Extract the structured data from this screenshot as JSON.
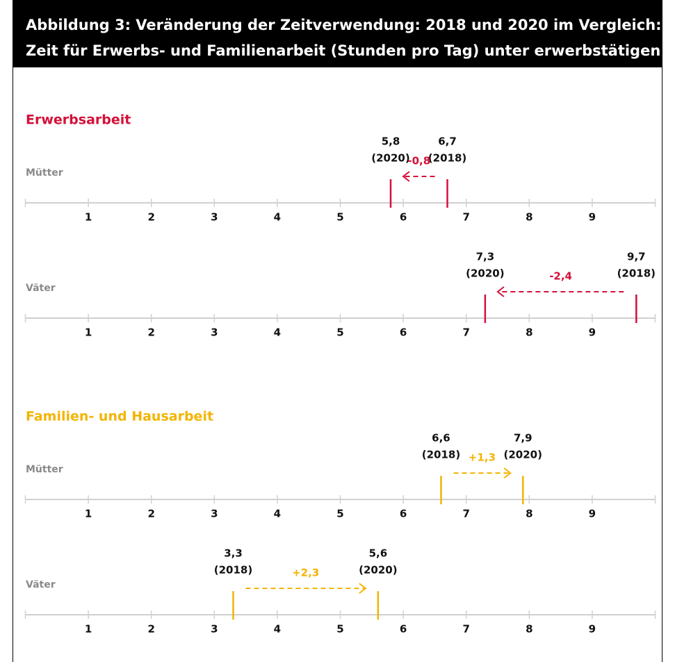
{
  "title": [
    "Abbildung 3: Veränderung der Zeitverwendung: 2018 und 2020 im Vergleich:",
    "Zeit für Erwerbs- und Familienarbeit (Stunden pro Tag) unter erwerbstätigen Eltern"
  ],
  "chart_data": [
    {
      "type": "arrow-range",
      "section": "Erwerbsarbeit",
      "title": "Mütter",
      "color": "#d4103a",
      "values": [
        6.7,
        5.8
      ],
      "value_labels": [
        "6,7",
        "5,8"
      ],
      "years": [
        "(2018)",
        "(2020)"
      ],
      "change": -0.8,
      "change_label": "-0,8",
      "xlim": [
        0,
        10
      ],
      "xticks": [
        1,
        2,
        3,
        4,
        5,
        6,
        7,
        8,
        9
      ]
    },
    {
      "type": "arrow-range",
      "title": "Väter",
      "color": "#d4103a",
      "values": [
        9.7,
        7.3
      ],
      "value_labels": [
        "9,7",
        "7,3"
      ],
      "years": [
        "(2018)",
        "(2020)"
      ],
      "change": -2.4,
      "change_label": "-2,4",
      "xlim": [
        0,
        10
      ],
      "xticks": [
        1,
        2,
        3,
        4,
        5,
        6,
        7,
        8,
        9
      ]
    },
    {
      "type": "arrow-range",
      "section": "Familien- und Hausarbeit",
      "title": "Mütter",
      "color": "#f4b400",
      "values": [
        6.6,
        7.9
      ],
      "value_labels": [
        "6,6",
        "7,9"
      ],
      "years": [
        "(2018)",
        "(2020)"
      ],
      "change": 1.3,
      "change_label": "+1,3",
      "xlim": [
        0,
        10
      ],
      "xticks": [
        1,
        2,
        3,
        4,
        5,
        6,
        7,
        8,
        9
      ]
    },
    {
      "type": "arrow-range",
      "title": "Väter",
      "color": "#f4b400",
      "values": [
        3.3,
        5.6
      ],
      "value_labels": [
        "3,3",
        "5,6"
      ],
      "years": [
        "(2018)",
        "(2020)"
      ],
      "change": 2.3,
      "change_label": "+2,3",
      "xlim": [
        0,
        10
      ],
      "xticks": [
        1,
        2,
        3,
        4,
        5,
        6,
        7,
        8,
        9
      ]
    }
  ]
}
